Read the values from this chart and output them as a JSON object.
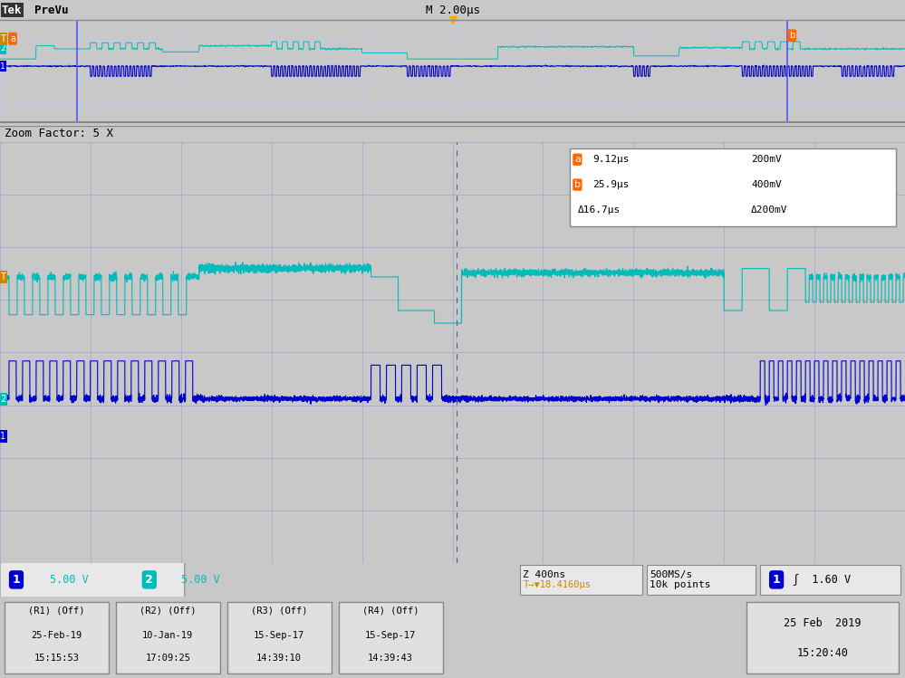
{
  "title_bar_bg": "#d4d4d4",
  "title_bar_fg": "#000000",
  "top_panel_bg": "#ffffff",
  "main_panel_bg": "#ffffff",
  "grid_color": "#aaaacc",
  "ch1_color": "#00bbbb",
  "ch2_color": "#0000cc",
  "cursor_v_color": "#4444ff",
  "marker_orange": "#ff6600",
  "marker_cursor_orange": "#ffaa00",
  "status_bg": "#c8c8c8",
  "footer_bg": "#c8c8c8",
  "ann_box_bg": "#ffffff",
  "ann_box_edge": "#888888",
  "title_text": "Tek PreVu",
  "title_right": "M 2.00μs",
  "zoom_label": "Zoom Factor: 5 X",
  "ann_a_time": "9.12μs",
  "ann_a_volt": "200mV",
  "ann_b_time": "25.9μs",
  "ann_b_volt": "400mV",
  "ann_dt": "Δ16.7μs",
  "ann_dv": "Δ200mV",
  "ch1_scale": "5.00 V",
  "ch2_scale": "5.00 V",
  "z_time": "Z 400ns",
  "trigger_time": "►▼18.4160μs",
  "sample_rate": "500MS/s",
  "sample_pts": "10k points",
  "trig_level": "1.60 V",
  "r1_line1": "(R1) (Off)",
  "r1_line2": "25-Feb-19",
  "r1_line3": "15:15:53",
  "r2_line1": "(R2) (Off)",
  "r2_line2": "10-Jan-19",
  "r2_line3": "17:09:25",
  "r3_line1": "(R3) (Off)",
  "r3_line2": "15-Sep-17",
  "r3_line3": "14:39:10",
  "r4_line1": "(R4) (Off)",
  "r4_line2": "15-Sep-17",
  "r4_line3": "14:39:43",
  "date_line1": "25 Feb  2019",
  "date_line2": "15:20:40"
}
